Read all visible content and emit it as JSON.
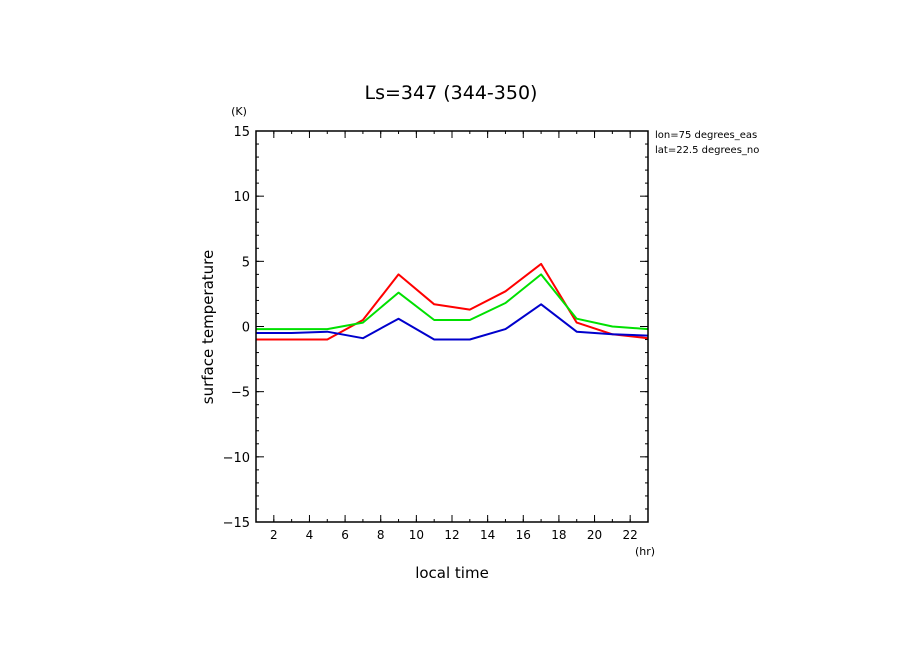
{
  "chart_data": {
    "type": "line",
    "title": "Ls=347 (344-350)",
    "xlabel": "local time",
    "ylabel": "surface temperature",
    "x_unit": "(hr)",
    "y_unit": "(K)",
    "xlim": [
      1,
      23
    ],
    "ylim": [
      -15,
      15
    ],
    "x_ticks": [
      2,
      4,
      6,
      8,
      10,
      12,
      14,
      16,
      18,
      20,
      22
    ],
    "y_ticks": [
      -15,
      -10,
      -5,
      0,
      5,
      10,
      15
    ],
    "annotations": [
      "lon=75 degrees_eas",
      "lat=22.5 degrees_no"
    ],
    "x": [
      1,
      3,
      5,
      7,
      9,
      11,
      13,
      15,
      17,
      19,
      21,
      23
    ],
    "series": [
      {
        "color": "#ff0000",
        "values": [
          -1.0,
          -1.0,
          -1.0,
          0.5,
          4.0,
          1.7,
          1.3,
          2.7,
          4.8,
          0.3,
          -0.6,
          -0.9
        ]
      },
      {
        "color": "#00e000",
        "values": [
          -0.2,
          -0.2,
          -0.2,
          0.3,
          2.6,
          0.5,
          0.5,
          1.8,
          4.0,
          0.6,
          0.0,
          -0.2
        ]
      },
      {
        "color": "#0000cc",
        "values": [
          -0.5,
          -0.5,
          -0.4,
          -0.9,
          0.6,
          -1.0,
          -1.0,
          -0.2,
          1.7,
          -0.4,
          -0.6,
          -0.7
        ]
      }
    ]
  }
}
